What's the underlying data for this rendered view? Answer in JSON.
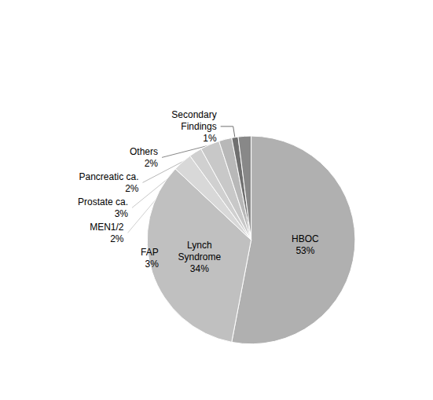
{
  "chart_data": {
    "type": "pie",
    "categories": [
      "HBOC",
      "Lynch\nSyndrome",
      "FAP",
      "MEN1/2",
      "Prostate ca.",
      "Pancreatic ca.",
      "Secondary\nFindings",
      "Others"
    ],
    "values": [
      53,
      34,
      3,
      2,
      3,
      2,
      1,
      2
    ],
    "value_labels": [
      "53%",
      "34%",
      "3%",
      "2%",
      "3%",
      "2%",
      "1%",
      "2%"
    ],
    "colors": [
      "#b0b0b0",
      "#c0c0c0",
      "#d8d8d8",
      "#d0d0d0",
      "#c8c8c8",
      "#b8b8b8",
      "#707070",
      "#888888"
    ],
    "data_labels": true
  }
}
